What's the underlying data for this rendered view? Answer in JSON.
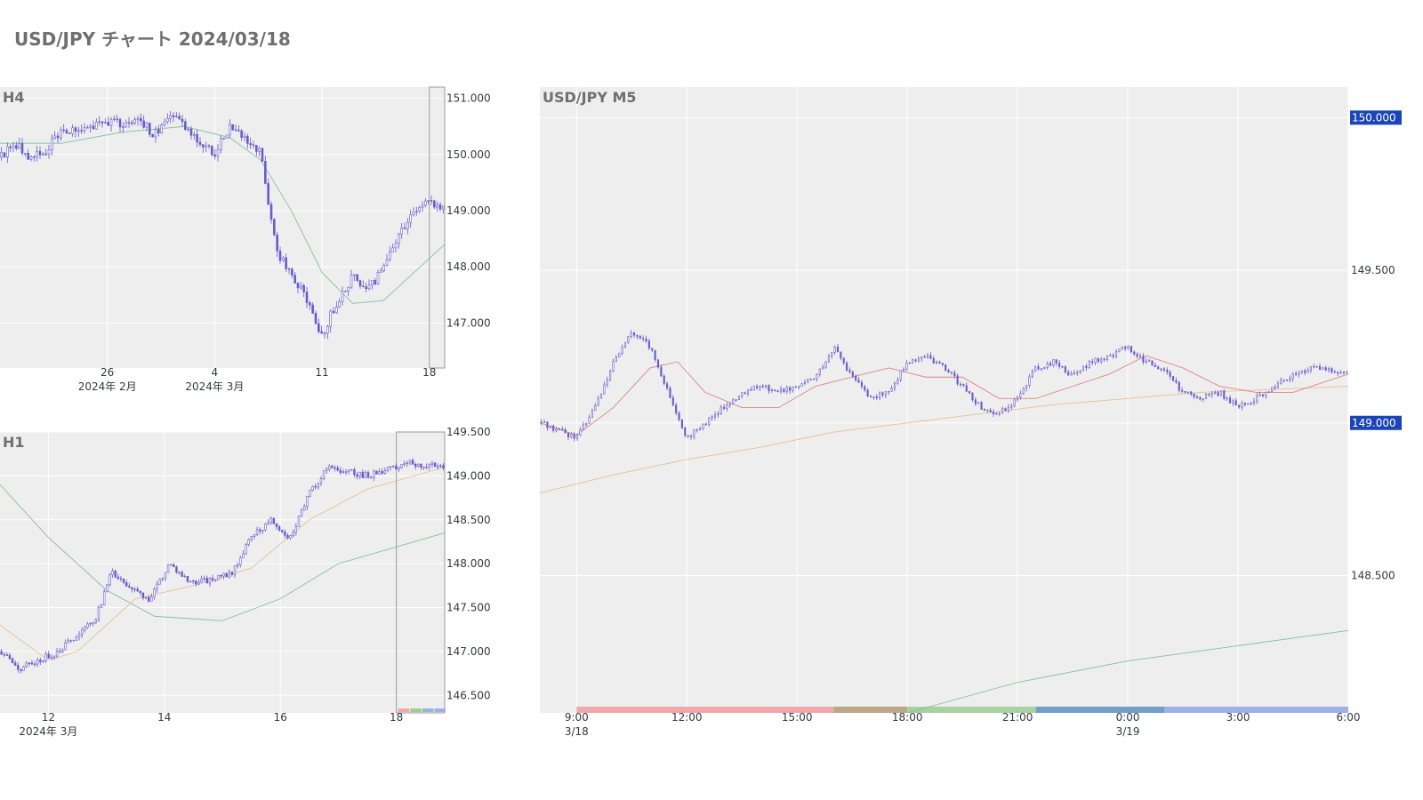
{
  "page": {
    "title": "USD/JPY チャート 2024/03/18"
  },
  "colors": {
    "candle": "#6a5acd",
    "ma_short": "#e07070",
    "ma_mid": "#e8b880",
    "ma_long": "#70b890",
    "badge": "#1a44b8",
    "plot_bg": "#eeeeee"
  },
  "chart_data": [
    {
      "id": "h4",
      "type": "candlestick",
      "title": "H4",
      "ylim": [
        146.2,
        151.2
      ],
      "y_ticks": [
        "151.000",
        "150.000",
        "149.000",
        "148.000",
        "147.000"
      ],
      "y_tick_values": [
        151.0,
        150.0,
        149.0,
        148.0,
        147.0
      ],
      "x_range": [
        "2024-02-19",
        "2024-03-19"
      ],
      "x_ticks": [
        {
          "date": "2024-02-26",
          "label": "26",
          "sub": "2024年 2月"
        },
        {
          "date": "2024-03-04",
          "label": "4",
          "sub": "2024年 3月"
        },
        {
          "date": "2024-03-11",
          "label": "11",
          "sub": ""
        },
        {
          "date": "2024-03-18",
          "label": "18",
          "sub": ""
        }
      ],
      "highlight": [
        "2024-03-18",
        "2024-03-19"
      ],
      "close_path": [
        [
          "2024-02-19",
          149.95
        ],
        [
          "2024-02-20",
          150.2
        ],
        [
          "2024-02-21",
          149.9
        ],
        [
          "2024-02-22",
          150.1
        ],
        [
          "2024-02-23",
          150.4
        ],
        [
          "2024-02-26",
          150.6
        ],
        [
          "2024-02-27",
          150.5
        ],
        [
          "2024-02-28",
          150.7
        ],
        [
          "2024-02-29",
          150.3
        ],
        [
          "2024-03-01",
          150.7
        ],
        [
          "2024-03-02",
          150.5
        ],
        [
          "2024-03-04",
          150.0
        ],
        [
          "2024-03-05",
          150.5
        ],
        [
          "2024-03-06",
          150.3
        ],
        [
          "2024-03-07",
          150.0
        ],
        [
          "2024-03-08",
          148.3
        ],
        [
          "2024-03-09",
          147.9
        ],
        [
          "2024-03-10",
          147.4
        ],
        [
          "2024-03-11",
          146.8
        ],
        [
          "2024-03-12",
          147.4
        ],
        [
          "2024-03-13",
          147.8
        ],
        [
          "2024-03-14",
          147.6
        ],
        [
          "2024-03-15",
          148.0
        ],
        [
          "2024-03-16",
          148.6
        ],
        [
          "2024-03-17",
          149.0
        ],
        [
          "2024-03-18",
          149.15
        ],
        [
          "2024-03-19",
          149.1
        ]
      ],
      "ma_path": [
        [
          "2024-02-19",
          150.2
        ],
        [
          "2024-02-23",
          150.2
        ],
        [
          "2024-02-27",
          150.4
        ],
        [
          "2024-03-02",
          150.5
        ],
        [
          "2024-03-05",
          150.3
        ],
        [
          "2024-03-07",
          149.9
        ],
        [
          "2024-03-09",
          149.0
        ],
        [
          "2024-03-11",
          147.9
        ],
        [
          "2024-03-13",
          147.35
        ],
        [
          "2024-03-15",
          147.4
        ],
        [
          "2024-03-17",
          147.9
        ],
        [
          "2024-03-19",
          148.4
        ]
      ]
    },
    {
      "id": "h1",
      "type": "candlestick",
      "title": "H1",
      "ylim": [
        146.3,
        149.5
      ],
      "y_ticks": [
        "149.500",
        "149.000",
        "148.500",
        "148.000",
        "147.500",
        "147.000",
        "146.500"
      ],
      "y_tick_values": [
        149.5,
        149.0,
        148.5,
        148.0,
        147.5,
        147.0,
        146.5
      ],
      "x_range": [
        "2024-03-11T04:00",
        "2024-03-18T20:00"
      ],
      "x_ticks": [
        {
          "date": "2024-03-12T00:00",
          "label": "12",
          "sub": "2024年 3月"
        },
        {
          "date": "2024-03-14T00:00",
          "label": "14",
          "sub": ""
        },
        {
          "date": "2024-03-16T00:00",
          "label": "16",
          "sub": ""
        },
        {
          "date": "2024-03-18T00:00",
          "label": "18",
          "sub": ""
        }
      ],
      "highlight": [
        "2024-03-18T00:00",
        "2024-03-18T20:00"
      ],
      "session_bar": [
        "#f0a8a8",
        "#a8c890",
        "#90b8d8",
        "#a0b0e8"
      ],
      "close_path": [
        [
          "2024-03-11T04:00",
          147.0
        ],
        [
          "2024-03-11T12:00",
          146.8
        ],
        [
          "2024-03-11T20:00",
          146.9
        ],
        [
          "2024-03-12T04:00",
          147.0
        ],
        [
          "2024-03-12T12:00",
          147.2
        ],
        [
          "2024-03-12T20:00",
          147.4
        ],
        [
          "2024-03-13T02:00",
          147.9
        ],
        [
          "2024-03-13T10:00",
          147.7
        ],
        [
          "2024-03-13T18:00",
          147.6
        ],
        [
          "2024-03-14T02:00",
          148.0
        ],
        [
          "2024-03-14T10:00",
          147.8
        ],
        [
          "2024-03-14T18:00",
          147.8
        ],
        [
          "2024-03-15T04:00",
          147.9
        ],
        [
          "2024-03-15T12:00",
          148.3
        ],
        [
          "2024-03-15T20:00",
          148.5
        ],
        [
          "2024-03-16T04:00",
          148.3
        ],
        [
          "2024-03-16T12:00",
          148.8
        ],
        [
          "2024-03-16T20:00",
          149.1
        ],
        [
          "2024-03-17T12:00",
          149.0
        ],
        [
          "2024-03-18T04:00",
          149.15
        ],
        [
          "2024-03-18T20:00",
          149.1
        ]
      ],
      "ma_mid_path": [
        [
          "2024-03-11T04:00",
          147.3
        ],
        [
          "2024-03-12T00:00",
          146.9
        ],
        [
          "2024-03-12T12:00",
          147.0
        ],
        [
          "2024-03-13T12:00",
          147.6
        ],
        [
          "2024-03-14T12:00",
          147.75
        ],
        [
          "2024-03-15T12:00",
          147.95
        ],
        [
          "2024-03-16T12:00",
          148.5
        ],
        [
          "2024-03-17T12:00",
          148.85
        ],
        [
          "2024-03-18T20:00",
          149.1
        ]
      ],
      "ma_long_path": [
        [
          "2024-03-11T04:00",
          148.9
        ],
        [
          "2024-03-12T00:00",
          148.3
        ],
        [
          "2024-03-13T00:00",
          147.7
        ],
        [
          "2024-03-13T20:00",
          147.4
        ],
        [
          "2024-03-15T00:00",
          147.35
        ],
        [
          "2024-03-16T00:00",
          147.6
        ],
        [
          "2024-03-17T00:00",
          148.0
        ],
        [
          "2024-03-18T20:00",
          148.35
        ]
      ]
    },
    {
      "id": "m5",
      "type": "candlestick",
      "title": "USD/JPY M5",
      "ylim": [
        148.05,
        150.1
      ],
      "y_ticks": [
        "150.000",
        "149.500",
        "149.000",
        "148.500"
      ],
      "y_tick_values": [
        150.0,
        149.5,
        149.0,
        148.5
      ],
      "badges": [
        150.0,
        149.0
      ],
      "x_range": [
        "2024-03-18T08:00",
        "2024-03-19T06:00"
      ],
      "x_ticks": [
        {
          "date": "2024-03-18T09:00",
          "label": "9:00",
          "sub": "3/18"
        },
        {
          "date": "2024-03-18T12:00",
          "label": "12:00",
          "sub": ""
        },
        {
          "date": "2024-03-18T15:00",
          "label": "15:00",
          "sub": ""
        },
        {
          "date": "2024-03-18T18:00",
          "label": "18:00",
          "sub": ""
        },
        {
          "date": "2024-03-18T21:00",
          "label": "21:00",
          "sub": ""
        },
        {
          "date": "2024-03-19T00:00",
          "label": "0:00",
          "sub": "3/19"
        },
        {
          "date": "2024-03-19T03:00",
          "label": "3:00",
          "sub": ""
        },
        {
          "date": "2024-03-19T06:00",
          "label": "6:00",
          "sub": ""
        }
      ],
      "sessions": [
        {
          "start": "2024-03-18T09:00",
          "end": "2024-03-18T16:00",
          "color": "#f0a8a8"
        },
        {
          "start": "2024-03-18T16:00",
          "end": "2024-03-18T18:00",
          "color": "#b8a888"
        },
        {
          "start": "2024-03-18T18:00",
          "end": "2024-03-18T21:30",
          "color": "#a8d0a0"
        },
        {
          "start": "2024-03-18T21:30",
          "end": "2024-03-19T01:00",
          "color": "#70a0c8"
        },
        {
          "start": "2024-03-19T01:00",
          "end": "2024-03-19T06:00",
          "color": "#a0b0e8"
        }
      ],
      "close_path": [
        [
          "2024-03-18T08:00",
          149.0
        ],
        [
          "2024-03-18T09:00",
          148.95
        ],
        [
          "2024-03-18T09:30",
          149.05
        ],
        [
          "2024-03-18T10:00",
          149.2
        ],
        [
          "2024-03-18T10:30",
          149.3
        ],
        [
          "2024-03-18T11:00",
          149.25
        ],
        [
          "2024-03-18T11:30",
          149.1
        ],
        [
          "2024-03-18T12:00",
          148.95
        ],
        [
          "2024-03-18T12:30",
          149.0
        ],
        [
          "2024-03-18T13:00",
          149.05
        ],
        [
          "2024-03-18T13:30",
          149.1
        ],
        [
          "2024-03-18T14:00",
          149.12
        ],
        [
          "2024-03-18T14:30",
          149.1
        ],
        [
          "2024-03-18T15:00",
          149.12
        ],
        [
          "2024-03-18T15:30",
          149.15
        ],
        [
          "2024-03-18T16:00",
          149.25
        ],
        [
          "2024-03-18T16:30",
          149.15
        ],
        [
          "2024-03-18T17:00",
          149.08
        ],
        [
          "2024-03-18T17:30",
          149.1
        ],
        [
          "2024-03-18T18:00",
          149.2
        ],
        [
          "2024-03-18T18:30",
          149.22
        ],
        [
          "2024-03-18T19:00",
          149.18
        ],
        [
          "2024-03-18T19:30",
          149.12
        ],
        [
          "2024-03-18T20:00",
          149.05
        ],
        [
          "2024-03-18T20:30",
          149.03
        ],
        [
          "2024-03-18T21:00",
          149.08
        ],
        [
          "2024-03-18T21:30",
          149.18
        ],
        [
          "2024-03-18T22:00",
          149.2
        ],
        [
          "2024-03-18T22:30",
          149.15
        ],
        [
          "2024-03-18T23:00",
          149.2
        ],
        [
          "2024-03-18T23:30",
          149.22
        ],
        [
          "2024-03-19T00:00",
          149.25
        ],
        [
          "2024-03-19T00:30",
          149.2
        ],
        [
          "2024-03-19T01:00",
          149.17
        ],
        [
          "2024-03-19T01:30",
          149.1
        ],
        [
          "2024-03-19T02:00",
          149.08
        ],
        [
          "2024-03-19T02:30",
          149.1
        ],
        [
          "2024-03-19T03:00",
          149.05
        ],
        [
          "2024-03-19T03:30",
          149.08
        ],
        [
          "2024-03-19T04:00",
          149.12
        ],
        [
          "2024-03-19T04:30",
          149.16
        ],
        [
          "2024-03-19T05:00",
          149.18
        ],
        [
          "2024-03-19T05:30",
          149.17
        ],
        [
          "2024-03-19T06:00",
          149.16
        ]
      ],
      "ma_short_path": [
        [
          "2024-03-18T08:00",
          149.0
        ],
        [
          "2024-03-18T09:00",
          148.96
        ],
        [
          "2024-03-18T10:00",
          149.05
        ],
        [
          "2024-03-18T11:00",
          149.18
        ],
        [
          "2024-03-18T11:45",
          149.2
        ],
        [
          "2024-03-18T12:30",
          149.1
        ],
        [
          "2024-03-18T13:30",
          149.05
        ],
        [
          "2024-03-18T14:30",
          149.05
        ],
        [
          "2024-03-18T15:30",
          149.12
        ],
        [
          "2024-03-18T16:30",
          149.15
        ],
        [
          "2024-03-18T17:30",
          149.18
        ],
        [
          "2024-03-18T18:30",
          149.15
        ],
        [
          "2024-03-18T19:30",
          149.15
        ],
        [
          "2024-03-18T20:30",
          149.08
        ],
        [
          "2024-03-18T21:30",
          149.08
        ],
        [
          "2024-03-18T22:30",
          149.12
        ],
        [
          "2024-03-18T23:30",
          149.16
        ],
        [
          "2024-03-19T00:30",
          149.22
        ],
        [
          "2024-03-19T01:30",
          149.18
        ],
        [
          "2024-03-19T02:30",
          149.12
        ],
        [
          "2024-03-19T03:30",
          149.1
        ],
        [
          "2024-03-19T04:30",
          149.1
        ],
        [
          "2024-03-19T05:30",
          149.14
        ],
        [
          "2024-03-19T06:00",
          149.16
        ]
      ],
      "ma_mid_path": [
        [
          "2024-03-18T08:00",
          148.77
        ],
        [
          "2024-03-18T10:00",
          148.83
        ],
        [
          "2024-03-18T12:00",
          148.88
        ],
        [
          "2024-03-18T14:00",
          148.92
        ],
        [
          "2024-03-18T16:00",
          148.97
        ],
        [
          "2024-03-18T18:00",
          149.0
        ],
        [
          "2024-03-18T20:00",
          149.03
        ],
        [
          "2024-03-18T22:00",
          149.06
        ],
        [
          "2024-03-19T00:00",
          149.08
        ],
        [
          "2024-03-19T02:00",
          149.1
        ],
        [
          "2024-03-19T04:00",
          149.11
        ],
        [
          "2024-03-19T06:00",
          149.12
        ]
      ],
      "ma_long_path": [
        [
          "2024-03-18T18:00",
          148.05
        ],
        [
          "2024-03-18T21:00",
          148.15
        ],
        [
          "2024-03-19T00:00",
          148.22
        ],
        [
          "2024-03-19T03:00",
          148.27
        ],
        [
          "2024-03-19T06:00",
          148.32
        ]
      ]
    }
  ]
}
